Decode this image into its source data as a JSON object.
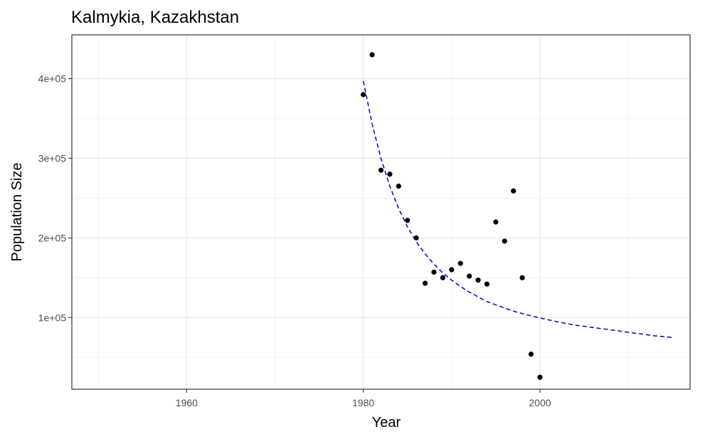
{
  "chart_data": {
    "type": "scatter",
    "title": "Kalmykia, Kazakhstan",
    "xlabel": "Year",
    "ylabel": "Population Size",
    "xlim": [
      1947,
      2017
    ],
    "ylim": [
      10000,
      455000
    ],
    "x_ticks": [
      1960,
      1980,
      2000
    ],
    "x_tick_labels": [
      "1960",
      "1980",
      "2000"
    ],
    "x_minor_ticks": [
      1950,
      1970,
      1990,
      2010
    ],
    "y_ticks": [
      100000,
      200000,
      300000,
      400000
    ],
    "y_tick_labels": [
      "1e+05",
      "2e+05",
      "3e+05",
      "4e+05"
    ],
    "y_minor_ticks": [
      50000,
      150000,
      250000,
      350000
    ],
    "grid": true,
    "series": [
      {
        "name": "observed",
        "kind": "points",
        "color": "#000000",
        "x": [
          1980,
          1981,
          1982,
          1983,
          1984,
          1985,
          1986,
          1987,
          1988,
          1989,
          1990,
          1991,
          1992,
          1993,
          1994,
          1995,
          1996,
          1997,
          1998,
          1999,
          2000
        ],
        "y": [
          380000,
          430000,
          285000,
          280000,
          265000,
          222000,
          200000,
          143000,
          157000,
          150000,
          160000,
          168000,
          152000,
          147000,
          142000,
          220000,
          196000,
          259000,
          150000,
          54000,
          25000
        ]
      },
      {
        "name": "fitted",
        "kind": "dashed-line",
        "color": "#0000cc",
        "x": [
          1980,
          1981,
          1982,
          1983,
          1984,
          1985,
          1986,
          1987,
          1988,
          1989,
          1990,
          1991,
          1992,
          1993,
          1994,
          1995,
          1996,
          1997,
          1998,
          1999,
          2000,
          2001,
          2002,
          2003,
          2004,
          2005,
          2006,
          2007,
          2008,
          2009,
          2010,
          2011,
          2012,
          2013,
          2014,
          2015
        ],
        "y": [
          397000,
          343000,
          300000,
          265000,
          237000,
          214000,
          195000,
          180000,
          167000,
          156000,
          147000,
          139000,
          132000,
          126000,
          120000,
          116000,
          112000,
          108000,
          105000,
          102000,
          99500,
          97000,
          94500,
          92500,
          90500,
          89000,
          87500,
          86000,
          84500,
          83000,
          81500,
          80000,
          78500,
          77000,
          76000,
          75000
        ]
      }
    ]
  }
}
